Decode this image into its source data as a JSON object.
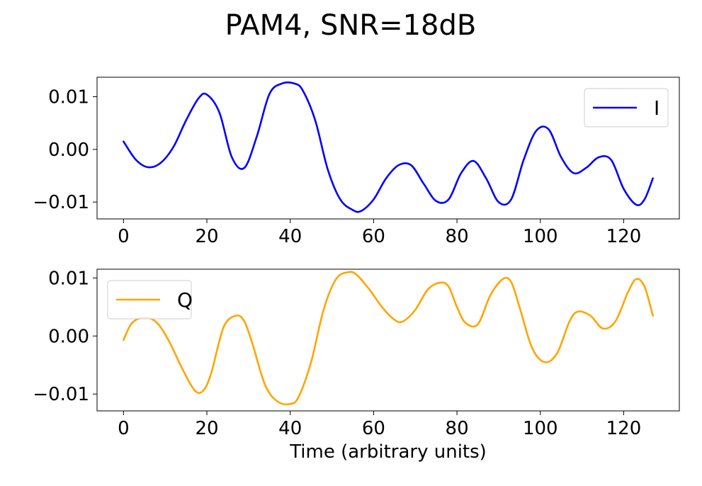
{
  "figure": {
    "title": "PAM4, SNR=18dB"
  },
  "chart_data": [
    {
      "type": "line",
      "title": "",
      "xlabel": "",
      "ylabel": "",
      "xlim": [
        -6.35,
        133.35
      ],
      "ylim": [
        -0.0132,
        0.0137
      ],
      "xticks": [
        0,
        20,
        40,
        60,
        80,
        100,
        120
      ],
      "xtick_labels": [
        "0",
        "20",
        "40",
        "60",
        "80",
        "100",
        "120"
      ],
      "yticks": [
        -0.01,
        0.0,
        0.01
      ],
      "ytick_labels": [
        "−0.01",
        "0.00",
        "0.01"
      ],
      "grid": false,
      "legend": "top-right",
      "series": [
        {
          "name": "I",
          "color": "#0000ff",
          "x": [
            0,
            3,
            6,
            9,
            12,
            15,
            18,
            20,
            23,
            26,
            29,
            32,
            35,
            38,
            41,
            43,
            46,
            49,
            52,
            55,
            57,
            60,
            63,
            66,
            69,
            72,
            75,
            78,
            81,
            84,
            87,
            90,
            93,
            96,
            99,
            102,
            105,
            108,
            111,
            114,
            117,
            120,
            123,
            125,
            127
          ],
          "y": [
            0.0015,
            -0.002,
            -0.0034,
            -0.0025,
            0.0005,
            0.0055,
            0.0097,
            0.0104,
            0.007,
            -0.0015,
            -0.0035,
            0.0025,
            0.0105,
            0.0125,
            0.0125,
            0.0112,
            0.0055,
            -0.0038,
            -0.0095,
            -0.0115,
            -0.0117,
            -0.0095,
            -0.0055,
            -0.003,
            -0.003,
            -0.0065,
            -0.0098,
            -0.0095,
            -0.0045,
            -0.0022,
            -0.0055,
            -0.01,
            -0.0095,
            -0.002,
            0.0035,
            0.0038,
            -0.0015,
            -0.0045,
            -0.0035,
            -0.0015,
            -0.002,
            -0.0075,
            -0.0105,
            -0.0095,
            -0.0055
          ]
        }
      ]
    },
    {
      "type": "line",
      "title": "",
      "xlabel": "Time (arbitrary units)",
      "ylabel": "",
      "xlim": [
        -6.35,
        133.35
      ],
      "ylim": [
        -0.0129,
        0.0115
      ],
      "xticks": [
        0,
        20,
        40,
        60,
        80,
        100,
        120
      ],
      "xtick_labels": [
        "0",
        "20",
        "40",
        "60",
        "80",
        "100",
        "120"
      ],
      "yticks": [
        -0.01,
        0.0,
        0.01
      ],
      "ytick_labels": [
        "−0.01",
        "0.00",
        "0.01"
      ],
      "grid": false,
      "legend": "top-left",
      "series": [
        {
          "name": "Q",
          "color": "#ffa500",
          "x": [
            0,
            2,
            5,
            8,
            11,
            14,
            17,
            19,
            21,
            24,
            27,
            29,
            31,
            34,
            37,
            40,
            42,
            45,
            48,
            51,
            54,
            56,
            59,
            62,
            65,
            67,
            70,
            73,
            76,
            78,
            80,
            82,
            85,
            88,
            91,
            93,
            95,
            98,
            101,
            104,
            107,
            109,
            112,
            115,
            118,
            121,
            123,
            125,
            127
          ],
          "y": [
            -0.0007,
            0.0022,
            0.0032,
            0.0023,
            -0.001,
            -0.0055,
            -0.0093,
            -0.0095,
            -0.0065,
            0.0015,
            0.0035,
            0.0025,
            -0.0015,
            -0.0085,
            -0.0113,
            -0.0117,
            -0.0105,
            -0.0045,
            0.0045,
            0.0098,
            0.011,
            0.0105,
            0.008,
            0.005,
            0.0028,
            0.0025,
            0.0045,
            0.008,
            0.0092,
            0.0085,
            0.005,
            0.0023,
            0.002,
            0.007,
            0.0098,
            0.0093,
            0.005,
            -0.002,
            -0.0045,
            -0.003,
            0.0025,
            0.0042,
            0.0035,
            0.0013,
            0.0025,
            0.0075,
            0.0098,
            0.0085,
            0.0035
          ]
        }
      ]
    }
  ]
}
